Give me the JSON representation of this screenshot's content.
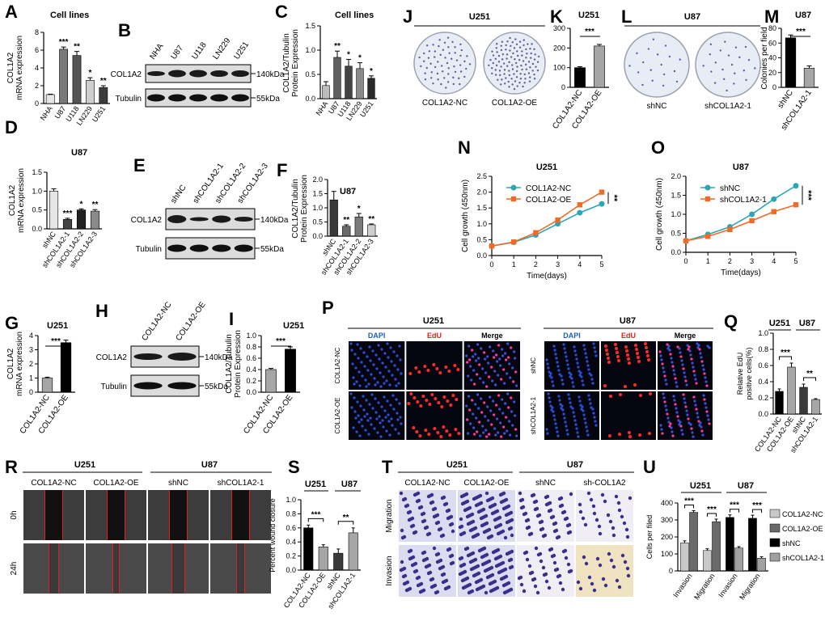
{
  "panels": {
    "A": {
      "label": "A",
      "title": "Cell lines",
      "ylabel": [
        "COL1A2",
        "mRNA expression"
      ],
      "yticks": [
        "0",
        "2",
        "4",
        "6",
        "8"
      ],
      "categories": [
        "NHA",
        "U87",
        "U118",
        "LN229",
        "U251"
      ],
      "values": [
        1.0,
        6.1,
        5.4,
        2.6,
        1.8
      ],
      "errors": [
        0.05,
        0.25,
        0.45,
        0.3,
        0.2
      ],
      "ymax": 8,
      "sig": [
        "",
        "***",
        "**",
        "*",
        "**"
      ],
      "colors": [
        "#e6e6e6",
        "#7a7a7a",
        "#555555",
        "#cfcfcf",
        "#3c3c3c"
      ]
    },
    "B": {
      "label": "B",
      "lanes": [
        "NHA",
        "U87",
        "U118",
        "LN229",
        "U251"
      ],
      "rows": [
        "COL1A2",
        "Tubulin"
      ],
      "kda": [
        "140kDa",
        "55kDa"
      ]
    },
    "C": {
      "label": "C",
      "title": "Cell lines",
      "ylabel": [
        "COL1A2/Tubulin",
        "Protein Expression"
      ],
      "yticks": [
        "0.0",
        "0.5",
        "1.0",
        "1.5"
      ],
      "categories": [
        "NHA",
        "U87",
        "U118",
        "LN229",
        "U251"
      ],
      "values": [
        0.27,
        0.85,
        0.67,
        0.62,
        0.42
      ],
      "errors": [
        0.08,
        0.13,
        0.14,
        0.12,
        0.05
      ],
      "ymax": 1.5,
      "sig": [
        "",
        "**",
        "*",
        "*",
        "*"
      ],
      "colors": [
        "#bdbdbd",
        "#5f5f5f",
        "#444444",
        "#8a8a8a",
        "#2a2a2a"
      ]
    },
    "D": {
      "label": "D",
      "title": "U87",
      "ylabel": [
        "COL1A2",
        "mRNA expression"
      ],
      "yticks": [
        "0.0",
        "0.5",
        "1.0",
        "1.5"
      ],
      "categories": [
        "shNC",
        "shCOL1A2-1",
        "shCOL1A2-2",
        "shCOL1A2-3"
      ],
      "values": [
        1.0,
        0.25,
        0.5,
        0.47
      ],
      "errors": [
        0.06,
        0.03,
        0.03,
        0.04
      ],
      "ymax": 1.5,
      "sig": [
        "",
        "***",
        "*",
        "**"
      ],
      "colors": [
        "#e6e6e6",
        "#444444",
        "#222222",
        "#8a8a8a"
      ]
    },
    "E": {
      "label": "E",
      "lanes": [
        "shNC",
        "shCOL1A2-1",
        "shCOL1A2-2",
        "shCOL1A2-3"
      ],
      "rows": [
        "COL1A2",
        "Tubulin"
      ],
      "kda": [
        "140kDa",
        "55kDa"
      ]
    },
    "F": {
      "label": "F",
      "title": "U87",
      "ylabel": [
        "COL1A2/Tubulin",
        "Protein Expression"
      ],
      "yticks": [
        "0.0",
        "0.5",
        "1.0",
        "1.5",
        "2.0"
      ],
      "categories": [
        "shNC",
        "shCOL1A2-1",
        "shCOL1A2-2",
        "shCOL1A2-3"
      ],
      "values": [
        1.28,
        0.35,
        0.68,
        0.4
      ],
      "errors": [
        0.3,
        0.05,
        0.12,
        0.03
      ],
      "ymax": 2.0,
      "sig": [
        "",
        "**",
        "*",
        "**"
      ],
      "colors": [
        "#3a3a3a",
        "#6a6a6a",
        "#7a7a7a",
        "#cfcfcf"
      ]
    },
    "G": {
      "label": "G",
      "title": "U251",
      "ylabel": [
        "COL1A2",
        "mRNA expression"
      ],
      "yticks": [
        "0",
        "1",
        "2",
        "3",
        "4"
      ],
      "categories": [
        "COL1A2-NC",
        "COL1A2-OE"
      ],
      "values": [
        1.0,
        3.5
      ],
      "errors": [
        0.06,
        0.18
      ],
      "ymax": 4,
      "sig": "***",
      "colors": [
        "#a6a6a6",
        "#000000"
      ]
    },
    "H": {
      "label": "H",
      "lanes": [
        "COL1A2-NC",
        "COL1A2-OE"
      ],
      "rows": [
        "COL1A2",
        "Tubulin"
      ],
      "kda": [
        "140kDa",
        "55kDa"
      ]
    },
    "I": {
      "label": "I",
      "title": "U251",
      "ylabel": [
        "COL1A2/Tubulin",
        "Protein Expression"
      ],
      "yticks": [
        "0.0",
        "0.2",
        "0.4",
        "0.6",
        "0.8",
        "1.0"
      ],
      "categories": [
        "COL1A2-NC",
        "COL1A2-OE"
      ],
      "values": [
        0.4,
        0.76
      ],
      "errors": [
        0.02,
        0.04
      ],
      "ymax": 1.0,
      "sig": "***",
      "colors": [
        "#a6a6a6",
        "#000000"
      ]
    },
    "J": {
      "label": "J",
      "title": "U251",
      "captions": [
        "COL1A2-NC",
        "COL1A2-OE"
      ]
    },
    "K": {
      "label": "K",
      "title": "U251",
      "yticks": [
        "0",
        "100",
        "200",
        "300"
      ],
      "categories": [
        "COL1A2-NC",
        "COL1A2-OE"
      ],
      "values": [
        100,
        210
      ],
      "errors": [
        5,
        8
      ],
      "ymax": 300,
      "sig": "***",
      "colors": [
        "#000000",
        "#a6a6a6"
      ]
    },
    "L": {
      "label": "L",
      "title": "U87",
      "captions": [
        "shNC",
        "shCOL1A2-1"
      ]
    },
    "M": {
      "label": "M",
      "title": "U87",
      "ylabel": "Colonies per field",
      "yticks": [
        "0",
        "20",
        "40",
        "60",
        "80"
      ],
      "categories": [
        "shNC",
        "shCOL1A2-1"
      ],
      "values": [
        67,
        26
      ],
      "errors": [
        4,
        3
      ],
      "ymax": 80,
      "sig": "***",
      "colors": [
        "#000000",
        "#a6a6a6"
      ]
    },
    "N": {
      "label": "N",
      "title": "U251",
      "ylabel": "Cell growth (450nm)",
      "xlabel": "Time(days)",
      "xticks": [
        "0",
        "1",
        "2",
        "3",
        "4",
        "5"
      ],
      "yticks": [
        "0.0",
        "0.5",
        "1.0",
        "1.5",
        "2.0",
        "2.5"
      ],
      "ymax": 2.5,
      "series": [
        {
          "name": "COL1A2-NC",
          "color": "#2aa7b3",
          "marker": "circle",
          "values": [
            0.3,
            0.42,
            0.65,
            1.0,
            1.35,
            1.63
          ]
        },
        {
          "name": "COL1A2-OE",
          "color": "#f06a28",
          "marker": "square",
          "values": [
            0.3,
            0.43,
            0.72,
            1.12,
            1.6,
            2.0
          ]
        }
      ],
      "sig": "**"
    },
    "O": {
      "label": "O",
      "title": "U87",
      "ylabel": "Cell growth (450nm)",
      "xlabel": "Time(days)",
      "xticks": [
        "0",
        "1",
        "2",
        "3",
        "4",
        "5"
      ],
      "yticks": [
        "0.0",
        "0.5",
        "1.0",
        "1.5",
        "2.0"
      ],
      "ymax": 2.0,
      "series": [
        {
          "name": "shNC",
          "color": "#2aa7b3",
          "marker": "circle",
          "values": [
            0.3,
            0.47,
            0.67,
            1.0,
            1.4,
            1.75
          ]
        },
        {
          "name": "shCOL1A2-1",
          "color": "#f06a28",
          "marker": "square",
          "values": [
            0.3,
            0.42,
            0.6,
            0.83,
            1.07,
            1.25
          ]
        }
      ],
      "sig": "***"
    },
    "P": {
      "label": "P",
      "groups": [
        {
          "title": "U251",
          "rows": [
            "COL1A2-NC",
            "COL1A2-OE"
          ]
        },
        {
          "title": "U87",
          "rows": [
            "shNC",
            "shCOL1A2-1"
          ]
        }
      ],
      "columns": [
        "DAPI",
        "EdU",
        "Merge"
      ]
    },
    "Q": {
      "label": "Q",
      "groups": [
        "U251",
        "U87"
      ],
      "ylabel": [
        "Relative EdU",
        "positive cells(%)"
      ],
      "yticks": [
        "0.0",
        "0.2",
        "0.4",
        "0.6",
        "0.8",
        "1.0"
      ],
      "categories": [
        "COL1A2-NC",
        "COL1A2-OE",
        "shNC",
        "shCOL1A2-1"
      ],
      "values": [
        0.28,
        0.58,
        0.33,
        0.18
      ],
      "errors": [
        0.03,
        0.05,
        0.04,
        0.01
      ],
      "ymax": 1.0,
      "sig": [
        "***",
        "**"
      ],
      "colors": [
        "#000000",
        "#a6a6a6",
        "#3a3a3a",
        "#a6a6a6"
      ]
    },
    "R": {
      "label": "R",
      "groups": [
        "U251",
        "U87"
      ],
      "columns": [
        "COL1A2-NC",
        "COL1A2-OE",
        "shNC",
        "shCOL1A2-1"
      ],
      "rows": [
        "0h",
        "24h"
      ]
    },
    "S": {
      "label": "S",
      "groups": [
        "U251",
        "U87"
      ],
      "ylabel": "Percent wound closure",
      "yticks": [
        "0.0",
        "0.2",
        "0.4",
        "0.6",
        "0.8",
        "1.0"
      ],
      "categories": [
        "COL1A2-NC",
        "COL1A2-OE",
        "shNC",
        "shCOL1A2-1"
      ],
      "values": [
        0.6,
        0.33,
        0.24,
        0.53
      ],
      "errors": [
        0.04,
        0.03,
        0.06,
        0.07
      ],
      "ymax": 1.0,
      "sig": [
        "***",
        "**"
      ],
      "colors": [
        "#000000",
        "#a6a6a6",
        "#3a3a3a",
        "#a6a6a6"
      ]
    },
    "T": {
      "label": "T",
      "groups": [
        "U251",
        "U87"
      ],
      "columns": [
        "COL1A2-NC",
        "COL1A2-OE",
        "shNC",
        "sh-COL1A2"
      ],
      "rows": [
        "Migration",
        "Invasion"
      ]
    },
    "U": {
      "label": "U",
      "groups": [
        "U251",
        "U87"
      ],
      "ylabel": "Cells per filed",
      "yticks": [
        "0",
        "100",
        "200",
        "300",
        "400"
      ],
      "xcats": [
        "Invasion",
        "Migration",
        "Invasion",
        "Migration"
      ],
      "values": [
        165,
        345,
        120,
        290,
        315,
        135,
        310,
        75
      ],
      "errors": [
        12,
        10,
        10,
        15,
        15,
        8,
        18,
        8
      ],
      "ymax": 400,
      "sig": [
        "***",
        "***",
        "***",
        "***"
      ],
      "legend": [
        {
          "name": "COL1A2-NC",
          "color": "#c8c8c8"
        },
        {
          "name": "COL1A2-OE",
          "color": "#6a6a6a"
        },
        {
          "name": "shNC",
          "color": "#000000"
        },
        {
          "name": "shCOL1A2-1",
          "color": "#a0a0a0"
        }
      ]
    }
  }
}
